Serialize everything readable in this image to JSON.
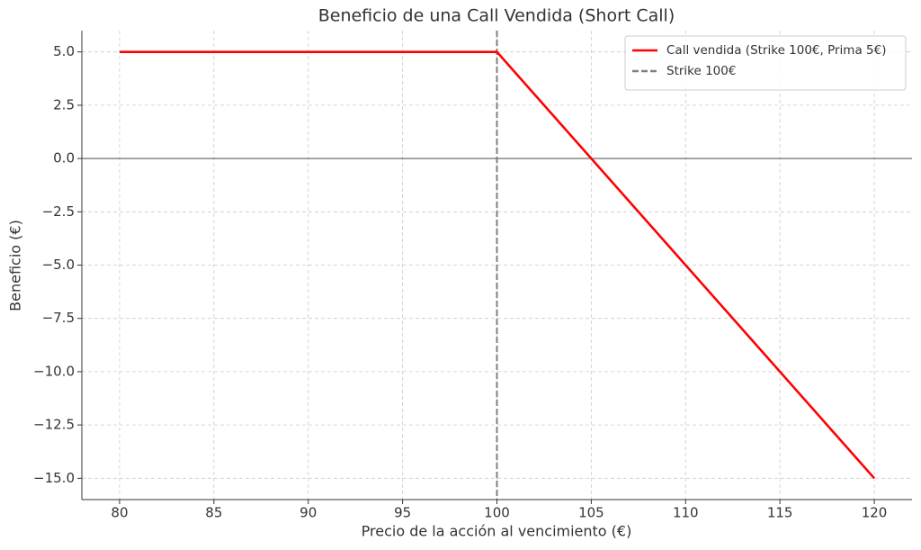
{
  "chart_data": {
    "type": "line",
    "title": "Beneficio de una Call Vendida (Short Call)",
    "x_label": "Precio de la acción al vencimiento (€)",
    "y_label": "Beneficio (€)",
    "series": [
      {
        "name": "Call vendida (Strike 100€, Prima 5€)",
        "color": "#ff0000",
        "x": [
          80,
          100,
          120
        ],
        "values": [
          5,
          5,
          -15
        ]
      }
    ],
    "vlines": [
      {
        "name": "Strike 100€",
        "x": 100,
        "color": "#808080"
      }
    ],
    "hline": 0,
    "xlim": [
      78,
      122
    ],
    "ylim": [
      -16,
      6
    ],
    "xticks": [
      80,
      85,
      90,
      95,
      100,
      105,
      110,
      115,
      120
    ],
    "yticks": [
      {
        "value": 5,
        "label": "5.0"
      },
      {
        "value": 2.5,
        "label": "2.5"
      },
      {
        "value": 0,
        "label": "0.0"
      },
      {
        "value": -2.5,
        "label": "−2.5"
      },
      {
        "value": -5,
        "label": "−5.0"
      },
      {
        "value": -7.5,
        "label": "−7.5"
      },
      {
        "value": -10,
        "label": "−10.0"
      },
      {
        "value": -12.5,
        "label": "−12.5"
      },
      {
        "value": -15,
        "label": "−15.0"
      }
    ],
    "grid": true,
    "legend": "upper right"
  }
}
